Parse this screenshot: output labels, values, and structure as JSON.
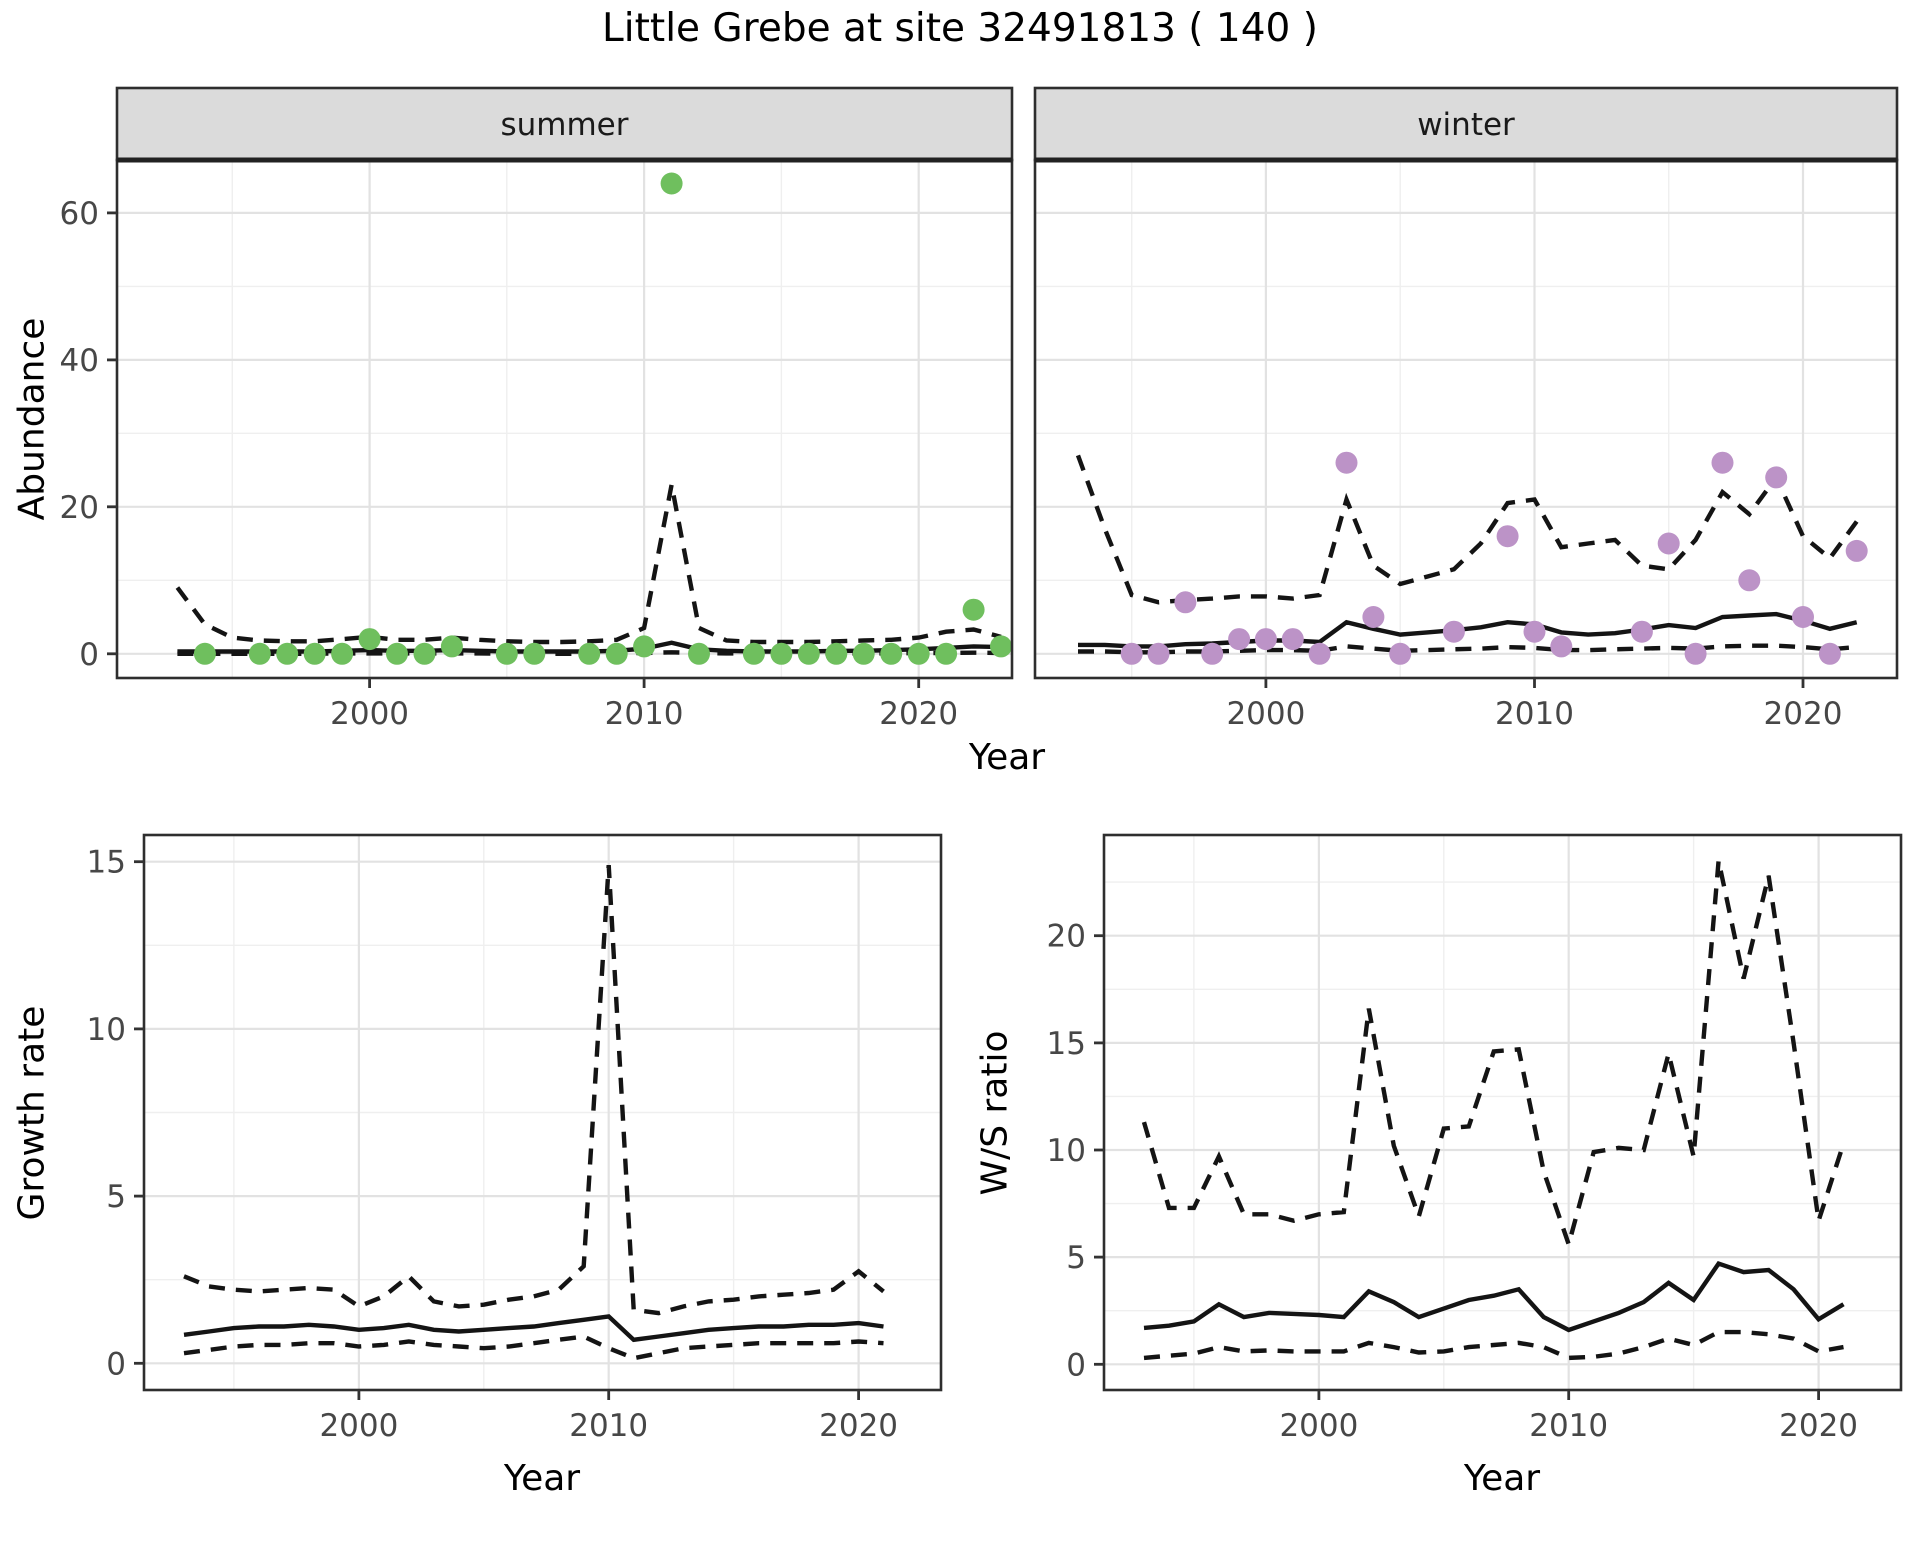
{
  "title": "Little Grebe at site 32491813 ( 140 )",
  "colors": {
    "summer_points": "#6FBF5E",
    "winter_points": "#BC93C7",
    "line": "#141414",
    "grid_major": "#E2E2E2",
    "grid_minor": "#EFEFEF",
    "panel_border": "#2E2E2E",
    "strip_background": "#DBDBDB",
    "tick_label": "#474747",
    "panel_background": "#FFFFFF"
  },
  "chart_data": [
    {
      "id": "abundance_summer",
      "type": "line",
      "facet_label": "summer",
      "xlabel": "Year",
      "ylabel": "Abundance",
      "xlim": [
        1990.8,
        2023.4
      ],
      "ylim": [
        -3.3,
        67.2
      ],
      "x_major_ticks": [
        2000,
        2010,
        2020
      ],
      "x_minor_ticks": [
        1995,
        2005,
        2015
      ],
      "y_major_ticks": [
        0,
        20,
        40,
        60
      ],
      "y_minor_ticks": [
        10,
        30,
        50
      ],
      "years": [
        1993,
        1994,
        1995,
        1996,
        1997,
        1998,
        1999,
        2000,
        2001,
        2002,
        2003,
        2004,
        2005,
        2006,
        2007,
        2008,
        2009,
        2010,
        2011,
        2012,
        2013,
        2014,
        2015,
        2016,
        2017,
        2018,
        2019,
        2020,
        2021,
        2022,
        2023
      ],
      "series": [
        {
          "name": "upper_95ci",
          "style": "dashed",
          "values": [
            9,
            4,
            2.2,
            1.8,
            1.7,
            1.7,
            2.0,
            2.3,
            1.9,
            1.9,
            2.2,
            1.9,
            1.7,
            1.6,
            1.6,
            1.7,
            1.9,
            3.5,
            23,
            3.5,
            1.8,
            1.6,
            1.6,
            1.6,
            1.7,
            1.8,
            1.9,
            2.2,
            3.0,
            3.3,
            2.3
          ]
        },
        {
          "name": "mean_fit",
          "style": "solid",
          "values": [
            0.3,
            0.3,
            0.3,
            0.3,
            0.3,
            0.3,
            0.4,
            0.5,
            0.4,
            0.4,
            0.5,
            0.4,
            0.3,
            0.3,
            0.3,
            0.3,
            0.4,
            0.7,
            1.5,
            0.6,
            0.4,
            0.3,
            0.3,
            0.3,
            0.4,
            0.4,
            0.5,
            0.6,
            0.8,
            1.0,
            0.9
          ]
        },
        {
          "name": "lower_95ci",
          "style": "dashed",
          "values": [
            0,
            0,
            0,
            0,
            0,
            0,
            0.05,
            0.05,
            0.05,
            0.05,
            0.05,
            0.05,
            0,
            0,
            0,
            0,
            0.05,
            0.1,
            0.2,
            0.1,
            0.05,
            0.05,
            0.05,
            0.05,
            0.05,
            0.05,
            0.05,
            0.1,
            0.1,
            0.15,
            0.1
          ]
        }
      ],
      "points": {
        "name": "observed_counts_summer",
        "color_key": "summer_points",
        "years": [
          1994,
          1996,
          1997,
          1998,
          1999,
          2000,
          2001,
          2002,
          2003,
          2005,
          2006,
          2008,
          2009,
          2010,
          2011,
          2012,
          2014,
          2015,
          2016,
          2017,
          2018,
          2019,
          2020,
          2021,
          2022,
          2023
        ],
        "values": [
          0,
          0,
          0,
          0,
          0,
          2,
          0,
          0,
          1,
          0,
          0,
          0,
          0,
          1,
          64,
          0,
          0,
          0,
          0,
          0,
          0,
          0,
          0,
          0,
          6,
          1
        ]
      }
    },
    {
      "id": "abundance_winter",
      "type": "line",
      "facet_label": "winter",
      "xlabel": "Year",
      "ylabel": "Abundance",
      "xlim": [
        1991.4,
        2023.5
      ],
      "ylim": [
        -3.3,
        67.2
      ],
      "x_major_ticks": [
        2000,
        2010,
        2020
      ],
      "x_minor_ticks": [
        1995,
        2005,
        2015
      ],
      "y_major_ticks": [
        0,
        20,
        40,
        60
      ],
      "y_minor_ticks": [
        10,
        30,
        50
      ],
      "years": [
        1993,
        1994,
        1995,
        1996,
        1997,
        1998,
        1999,
        2000,
        2001,
        2002,
        2003,
        2004,
        2005,
        2006,
        2007,
        2008,
        2009,
        2010,
        2011,
        2012,
        2013,
        2014,
        2015,
        2016,
        2017,
        2018,
        2019,
        2020,
        2021,
        2022
      ],
      "series": [
        {
          "name": "upper_95ci",
          "style": "dashed",
          "values": [
            27,
            17,
            8,
            7,
            7.3,
            7.5,
            7.8,
            7.8,
            7.5,
            8,
            21,
            12,
            9.5,
            10.5,
            11.5,
            15,
            20.5,
            21,
            14.5,
            15,
            15.5,
            12,
            11.5,
            15.5,
            22,
            19,
            24,
            16,
            13,
            18
          ]
        },
        {
          "name": "mean_fit",
          "style": "solid",
          "values": [
            1.2,
            1.2,
            1.0,
            1.0,
            1.3,
            1.4,
            1.6,
            1.8,
            1.8,
            1.6,
            4.3,
            3.4,
            2.6,
            2.9,
            3.2,
            3.6,
            4.3,
            4.0,
            2.9,
            2.6,
            2.8,
            3.3,
            3.9,
            3.5,
            5.0,
            5.2,
            5.4,
            4.5,
            3.4,
            4.3
          ]
        },
        {
          "name": "lower_95ci",
          "style": "dashed",
          "values": [
            0.3,
            0.3,
            0.2,
            0.2,
            0.3,
            0.3,
            0.4,
            0.5,
            0.5,
            0.4,
            1.0,
            0.7,
            0.4,
            0.5,
            0.6,
            0.7,
            0.9,
            0.8,
            0.5,
            0.5,
            0.6,
            0.7,
            0.8,
            0.7,
            1.0,
            1.1,
            1.1,
            0.9,
            0.6,
            0.9
          ]
        }
      ],
      "points": {
        "name": "observed_counts_winter",
        "color_key": "winter_points",
        "years": [
          1995,
          1996,
          1997,
          1998,
          1999,
          2000,
          2001,
          2002,
          2003,
          2004,
          2005,
          2007,
          2009,
          2010,
          2011,
          2014,
          2015,
          2016,
          2017,
          2018,
          2019,
          2020,
          2021,
          2022
        ],
        "values": [
          0,
          0,
          7,
          0,
          2,
          2,
          2,
          0,
          26,
          5,
          0,
          3,
          16,
          3,
          1,
          3,
          15,
          0,
          26,
          10,
          24,
          5,
          0,
          14
        ]
      }
    },
    {
      "id": "growth_rate",
      "type": "line",
      "facet_label": "",
      "xlabel": "Year",
      "ylabel": "Growth rate",
      "xlim": [
        1991.4,
        2023.3
      ],
      "ylim": [
        -0.8,
        15.8
      ],
      "x_major_ticks": [
        2000,
        2010,
        2020
      ],
      "x_minor_ticks": [
        1995,
        2005,
        2015
      ],
      "y_major_ticks": [
        0,
        5,
        10,
        15
      ],
      "y_minor_ticks": [
        2.5,
        7.5,
        12.5
      ],
      "years": [
        1993,
        1994,
        1995,
        1996,
        1997,
        1998,
        1999,
        2000,
        2001,
        2002,
        2003,
        2004,
        2005,
        2006,
        2007,
        2008,
        2009,
        2010,
        2011,
        2012,
        2013,
        2014,
        2015,
        2016,
        2017,
        2018,
        2019,
        2020,
        2021
      ],
      "series": [
        {
          "name": "upper_95ci",
          "style": "dashed",
          "values": [
            2.6,
            2.3,
            2.2,
            2.15,
            2.2,
            2.25,
            2.2,
            1.7,
            2.0,
            2.6,
            1.85,
            1.7,
            1.75,
            1.9,
            2.0,
            2.2,
            2.9,
            14.9,
            1.6,
            1.5,
            1.7,
            1.85,
            1.9,
            2.0,
            2.05,
            2.1,
            2.2,
            2.75,
            2.15
          ]
        },
        {
          "name": "mean_fit",
          "style": "solid",
          "values": [
            0.85,
            0.95,
            1.05,
            1.1,
            1.1,
            1.15,
            1.1,
            1.0,
            1.05,
            1.15,
            1.0,
            0.95,
            1.0,
            1.05,
            1.1,
            1.2,
            1.3,
            1.4,
            0.7,
            0.8,
            0.9,
            1.0,
            1.05,
            1.1,
            1.1,
            1.15,
            1.15,
            1.2,
            1.1
          ]
        },
        {
          "name": "lower_95ci",
          "style": "dashed",
          "values": [
            0.3,
            0.4,
            0.5,
            0.55,
            0.55,
            0.6,
            0.6,
            0.5,
            0.55,
            0.65,
            0.55,
            0.5,
            0.45,
            0.5,
            0.6,
            0.7,
            0.8,
            0.45,
            0.15,
            0.3,
            0.45,
            0.5,
            0.55,
            0.6,
            0.6,
            0.6,
            0.6,
            0.65,
            0.6
          ]
        }
      ],
      "points": null
    },
    {
      "id": "ws_ratio",
      "type": "line",
      "facet_label": "",
      "xlabel": "Year",
      "ylabel": "W/S ratio",
      "xlim": [
        1991.4,
        2023.3
      ],
      "ylim": [
        -1.2,
        24.7
      ],
      "x_major_ticks": [
        2000,
        2010,
        2020
      ],
      "x_minor_ticks": [
        1995,
        2005,
        2015
      ],
      "y_major_ticks": [
        0,
        5,
        10,
        15,
        20
      ],
      "y_minor_ticks": [
        2.5,
        7.5,
        12.5,
        17.5,
        22.5
      ],
      "years": [
        1993,
        1994,
        1995,
        1996,
        1997,
        1998,
        1999,
        2000,
        2001,
        2002,
        2003,
        2004,
        2005,
        2006,
        2007,
        2008,
        2009,
        2010,
        2011,
        2012,
        2013,
        2014,
        2015,
        2016,
        2017,
        2018,
        2019,
        2020,
        2021
      ],
      "series": [
        {
          "name": "upper_95ci",
          "style": "dashed",
          "values": [
            11.3,
            7.3,
            7.3,
            9.7,
            7.0,
            7.0,
            6.7,
            7.0,
            7.1,
            16.6,
            10.2,
            6.9,
            11.0,
            11.1,
            14.6,
            14.7,
            9.0,
            5.6,
            9.9,
            10.1,
            10.0,
            14.5,
            9.7,
            23.5,
            18.0,
            22.8,
            15.0,
            6.7,
            10.3
          ]
        },
        {
          "name": "mean_fit",
          "style": "solid",
          "values": [
            1.7,
            1.8,
            2.0,
            2.8,
            2.2,
            2.4,
            2.35,
            2.3,
            2.2,
            3.4,
            2.9,
            2.2,
            2.6,
            3.0,
            3.2,
            3.5,
            2.2,
            1.6,
            2.0,
            2.4,
            2.9,
            3.8,
            3.0,
            4.7,
            4.3,
            4.4,
            3.5,
            2.1,
            2.8
          ]
        },
        {
          "name": "lower_95ci",
          "style": "dashed",
          "values": [
            0.3,
            0.4,
            0.5,
            0.8,
            0.6,
            0.65,
            0.6,
            0.6,
            0.6,
            1.0,
            0.8,
            0.55,
            0.6,
            0.8,
            0.9,
            1.0,
            0.8,
            0.3,
            0.35,
            0.5,
            0.8,
            1.2,
            0.9,
            1.5,
            1.5,
            1.4,
            1.2,
            0.6,
            0.8
          ]
        }
      ],
      "points": null
    }
  ]
}
